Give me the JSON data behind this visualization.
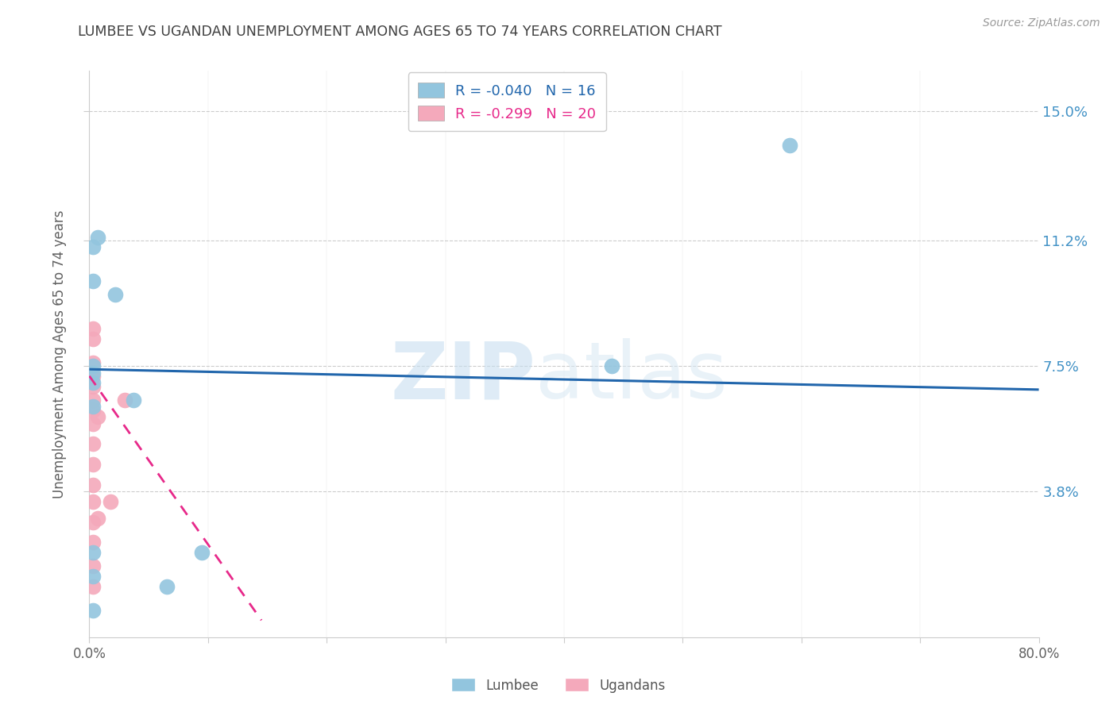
{
  "title": "LUMBEE VS UGANDAN UNEMPLOYMENT AMONG AGES 65 TO 74 YEARS CORRELATION CHART",
  "source": "Source: ZipAtlas.com",
  "ylabel": "Unemployment Among Ages 65 to 74 years",
  "xlim": [
    0,
    0.8
  ],
  "ylim": [
    -0.005,
    0.162
  ],
  "yticks": [
    0.038,
    0.075,
    0.112,
    0.15
  ],
  "ytick_labels": [
    "3.8%",
    "7.5%",
    "11.2%",
    "15.0%"
  ],
  "lumbee_color": "#92c5de",
  "ugandan_color": "#f4a9bb",
  "lumbee_R": -0.04,
  "lumbee_N": 16,
  "ugandan_R": -0.299,
  "ugandan_N": 20,
  "lumbee_x": [
    0.003,
    0.007,
    0.022,
    0.003,
    0.003,
    0.003,
    0.003,
    0.003,
    0.037,
    0.003,
    0.003,
    0.003,
    0.065,
    0.095,
    0.44,
    0.59
  ],
  "lumbee_y": [
    0.11,
    0.113,
    0.096,
    0.1,
    0.075,
    0.073,
    0.07,
    0.063,
    0.065,
    0.02,
    0.013,
    0.003,
    0.01,
    0.02,
    0.075,
    0.14
  ],
  "ugandan_x": [
    0.003,
    0.003,
    0.003,
    0.003,
    0.003,
    0.003,
    0.003,
    0.003,
    0.003,
    0.003,
    0.003,
    0.003,
    0.003,
    0.003,
    0.003,
    0.003,
    0.007,
    0.007,
    0.018,
    0.03
  ],
  "ugandan_y": [
    0.086,
    0.083,
    0.076,
    0.072,
    0.069,
    0.065,
    0.062,
    0.058,
    0.052,
    0.046,
    0.04,
    0.035,
    0.029,
    0.023,
    0.016,
    0.01,
    0.03,
    0.06,
    0.035,
    0.065
  ],
  "lumbee_line_color": "#2166ac",
  "ugandan_line_color": "#e7298a",
  "lumbee_trend_x": [
    0.0,
    0.8
  ],
  "lumbee_trend_y": [
    0.074,
    0.068
  ],
  "ugandan_trend_x": [
    0.0,
    0.145
  ],
  "ugandan_trend_y": [
    0.072,
    0.0
  ],
  "watermark_zip": "ZIP",
  "watermark_atlas": "atlas",
  "background_color": "#ffffff",
  "grid_color": "#cccccc",
  "title_color": "#404040",
  "axis_label_color": "#606060",
  "right_ytick_color": "#4292c6",
  "tick_label_color": "#606060"
}
